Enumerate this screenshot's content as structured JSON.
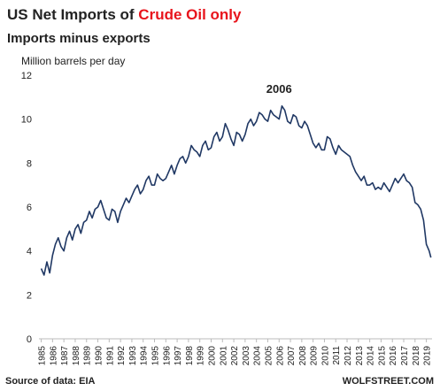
{
  "chart_data": {
    "type": "line",
    "title": "US Net Imports of ",
    "title_highlight": "Crude Oil only",
    "title_highlight_color": "#e8141c",
    "subtitle": "Imports minus exports",
    "y_label": "Million barrels per day",
    "source": "Source of data: EIA",
    "credit": "WOLFSTREET.COM",
    "annotations": [
      {
        "text": "2006",
        "x": 2006,
        "y": 11.2,
        "color": "#e8141c"
      }
    ],
    "color": "#203864",
    "grid": false,
    "ylim": [
      0,
      12
    ],
    "yticks": [
      0,
      2,
      4,
      6,
      8,
      10,
      12
    ],
    "xlim": [
      1984.8,
      2019.5
    ],
    "xticks": [
      1985,
      1986,
      1987,
      1988,
      1989,
      1990,
      1991,
      1992,
      1993,
      1994,
      1995,
      1996,
      1997,
      1998,
      1999,
      2000,
      2001,
      2002,
      2003,
      2004,
      2005,
      2006,
      2007,
      2008,
      2009,
      2010,
      2011,
      2012,
      2013,
      2014,
      2015,
      2016,
      2017,
      2018,
      2019
    ],
    "x": [
      1985,
      1985.25,
      1985.5,
      1985.75,
      1986,
      1986.25,
      1986.5,
      1986.75,
      1987,
      1987.25,
      1987.5,
      1987.75,
      1988,
      1988.25,
      1988.5,
      1988.75,
      1989,
      1989.25,
      1989.5,
      1989.75,
      1990,
      1990.25,
      1990.5,
      1990.75,
      1991,
      1991.25,
      1991.5,
      1991.75,
      1992,
      1992.25,
      1992.5,
      1992.75,
      1993,
      1993.25,
      1993.5,
      1993.75,
      1994,
      1994.25,
      1994.5,
      1994.75,
      1995,
      1995.25,
      1995.5,
      1995.75,
      1996,
      1996.25,
      1996.5,
      1996.75,
      1997,
      1997.25,
      1997.5,
      1997.75,
      1998,
      1998.25,
      1998.5,
      1998.75,
      1999,
      1999.25,
      1999.5,
      1999.75,
      2000,
      2000.25,
      2000.5,
      2000.75,
      2001,
      2001.25,
      2001.5,
      2001.75,
      2002,
      2002.25,
      2002.5,
      2002.75,
      2003,
      2003.25,
      2003.5,
      2003.75,
      2004,
      2004.25,
      2004.5,
      2004.75,
      2005,
      2005.25,
      2005.5,
      2005.75,
      2006,
      2006.25,
      2006.5,
      2006.75,
      2007,
      2007.25,
      2007.5,
      2007.75,
      2008,
      2008.25,
      2008.5,
      2008.75,
      2009,
      2009.25,
      2009.5,
      2009.75,
      2010,
      2010.25,
      2010.5,
      2010.75,
      2011,
      2011.25,
      2011.5,
      2011.75,
      2012,
      2012.25,
      2012.5,
      2012.75,
      2013,
      2013.25,
      2013.5,
      2013.75,
      2014,
      2014.25,
      2014.5,
      2014.75,
      2015,
      2015.25,
      2015.5,
      2015.75,
      2016,
      2016.25,
      2016.5,
      2016.75,
      2017,
      2017.25,
      2017.5,
      2017.75,
      2018,
      2018.25,
      2018.5,
      2018.75,
      2019,
      2019.25,
      2019.4
    ],
    "values": [
      3.2,
      2.9,
      3.5,
      3.0,
      3.8,
      4.3,
      4.6,
      4.2,
      4.0,
      4.6,
      4.9,
      4.5,
      5.0,
      5.2,
      4.8,
      5.3,
      5.4,
      5.8,
      5.5,
      5.9,
      6.0,
      6.3,
      5.9,
      5.5,
      5.4,
      5.9,
      5.8,
      5.3,
      5.8,
      6.1,
      6.4,
      6.2,
      6.5,
      6.8,
      7.0,
      6.6,
      6.8,
      7.2,
      7.4,
      7.0,
      7.0,
      7.5,
      7.3,
      7.2,
      7.3,
      7.6,
      7.9,
      7.5,
      7.9,
      8.2,
      8.3,
      8.0,
      8.3,
      8.8,
      8.6,
      8.5,
      8.3,
      8.8,
      9.0,
      8.6,
      8.7,
      9.2,
      9.4,
      9.0,
      9.2,
      9.8,
      9.5,
      9.1,
      8.8,
      9.4,
      9.3,
      9.0,
      9.3,
      9.8,
      10.0,
      9.7,
      9.9,
      10.3,
      10.2,
      10.0,
      9.9,
      10.4,
      10.2,
      10.1,
      10.0,
      10.6,
      10.4,
      9.9,
      9.8,
      10.2,
      10.1,
      9.7,
      9.6,
      9.9,
      9.7,
      9.3,
      8.9,
      8.7,
      8.9,
      8.6,
      8.6,
      9.2,
      9.1,
      8.7,
      8.4,
      8.8,
      8.6,
      8.5,
      8.4,
      8.3,
      7.9,
      7.6,
      7.4,
      7.2,
      7.4,
      7.0,
      7.0,
      7.1,
      6.8,
      6.9,
      6.8,
      7.1,
      6.9,
      6.7,
      7.0,
      7.3,
      7.1,
      7.3,
      7.5,
      7.2,
      7.1,
      6.9,
      6.2,
      6.1,
      5.9,
      5.4,
      4.3,
      4.0,
      3.7
    ]
  }
}
